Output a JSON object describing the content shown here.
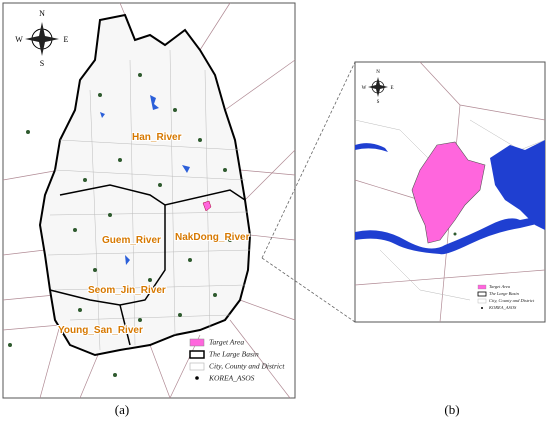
{
  "panel_a": {
    "compass": {
      "n": "N",
      "s": "S",
      "w": "W",
      "e": "E"
    },
    "rivers": [
      "Han_River",
      "Guem_River",
      "NakDong_River",
      "Seom_Jin_River",
      "Young_San_River"
    ],
    "legend": [
      "Target Area",
      "The Large Basin",
      "City, County and District",
      "KOREA_ASOS"
    ],
    "caption": "(a)"
  },
  "panel_b": {
    "compass": {
      "n": "N",
      "s": "S",
      "w": "W",
      "e": "E"
    },
    "legend": [
      "Target Area",
      "The Large Basin",
      "City, County and District",
      "KOREA_ASOS"
    ],
    "caption": "(b)"
  }
}
